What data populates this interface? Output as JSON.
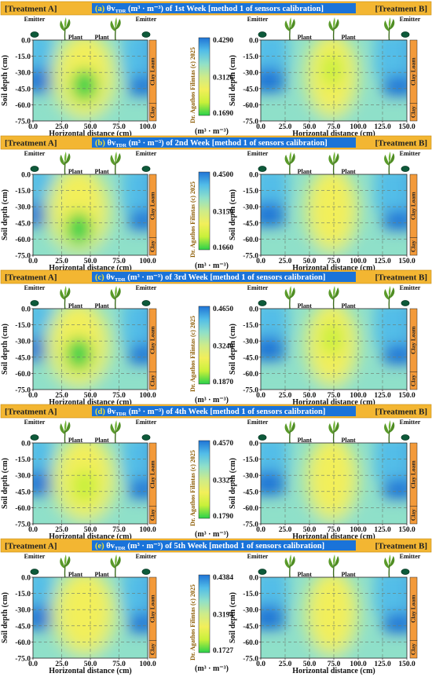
{
  "colors": {
    "banner_bg": "#f3b632",
    "banner_title_bg": "#1a73d9",
    "scale": [
      "#29d14a",
      "#c8f03a",
      "#f2ef5a",
      "#cdeb8a",
      "#8fe0c9",
      "#52bde8",
      "#1f74d6"
    ],
    "layer_label_bg": "#f39a3a"
  },
  "labels": {
    "treatment_a": "[Treatment A]",
    "treatment_b": "[Treatment B]",
    "emitter": "Emitter",
    "plant": "Plant",
    "y_axis": "Soil depth (cm)",
    "x_axis": "Horizontal distance (cm)",
    "colorbar_unit": "(m³ · m⁻³)",
    "credit": "Dr. Agathos Filintas (c) 2025",
    "layer_top": "Clay Loam",
    "layer_bottom": "Clay",
    "unit_prefix": "(m³ · m⁻³) of",
    "method": "[method 1 of sensors calibration]",
    "tdr_sub": "TDR"
  },
  "axes": {
    "y_ticks": [
      "0.0",
      "-15.0",
      "-30.0",
      "-45.0",
      "-60.0",
      "-75.0"
    ],
    "x_ticks_a": [
      "0.0",
      "25.0",
      "50.0",
      "75.0",
      "100.0"
    ],
    "x_ticks_b": [
      "0.0",
      "25.0",
      "50.0",
      "75.0",
      "100.0",
      "125.0",
      "150.0"
    ]
  },
  "chart_data": [
    {
      "type": "heatmap",
      "panel": "(a)",
      "week": "1st Week",
      "colorbar": {
        "max": "0.4290",
        "mid": "0.3126",
        "min": "0.1690"
      },
      "treatment_a": {
        "xlim": [
          0,
          100
        ],
        "ylim": [
          -75,
          0
        ],
        "wet_zone": {
          "center_x": 45,
          "center_y": -42,
          "value": 0.18
        }
      },
      "treatment_b": {
        "xlim": [
          0,
          150
        ],
        "ylim": [
          -75,
          0
        ],
        "wet_zone": {
          "center_x": 73,
          "center_y": -28,
          "value": 0.22
        }
      }
    },
    {
      "type": "heatmap",
      "panel": "(b)",
      "week": "2nd Week",
      "colorbar": {
        "max": "0.4500",
        "mid": "0.3159",
        "min": "0.1660"
      },
      "treatment_a": {
        "xlim": [
          0,
          100
        ],
        "ylim": [
          -75,
          0
        ],
        "wet_zone": {
          "center_x": 40,
          "center_y": -50,
          "value": 0.18
        }
      },
      "treatment_b": {
        "xlim": [
          0,
          150
        ],
        "ylim": [
          -75,
          0
        ],
        "wet_zone": {
          "center_x": 73,
          "center_y": -28,
          "value": 0.24
        }
      }
    },
    {
      "type": "heatmap",
      "panel": "(c)",
      "week": "3rd Week",
      "colorbar": {
        "max": "0.4650",
        "mid": "0.3240",
        "min": "0.1870"
      },
      "treatment_a": {
        "xlim": [
          0,
          100
        ],
        "ylim": [
          -75,
          0
        ],
        "wet_zone": {
          "center_x": 40,
          "center_y": -42,
          "value": 0.2
        }
      },
      "treatment_b": {
        "xlim": [
          0,
          150
        ],
        "ylim": [
          -75,
          0
        ],
        "wet_zone": {
          "center_x": 73,
          "center_y": -28,
          "value": 0.25
        }
      }
    },
    {
      "type": "heatmap",
      "panel": "(d)",
      "week": "4th Week",
      "colorbar": {
        "max": "0.4570",
        "mid": "0.3327",
        "min": "0.1790"
      },
      "treatment_a": {
        "xlim": [
          0,
          100
        ],
        "ylim": [
          -75,
          0
        ],
        "wet_zone": {
          "center_x": 45,
          "center_y": -40,
          "value": 0.24
        }
      },
      "treatment_b": {
        "xlim": [
          0,
          150
        ],
        "ylim": [
          -75,
          0
        ],
        "wet_zone": {
          "center_x": 73,
          "center_y": -25,
          "value": 0.25
        }
      }
    },
    {
      "type": "heatmap",
      "panel": "(e)",
      "week": "5th Week",
      "colorbar": {
        "max": "0.4384",
        "mid": "0.3194",
        "min": "0.1727"
      },
      "treatment_a": {
        "xlim": [
          0,
          100
        ],
        "ylim": [
          -75,
          0
        ],
        "wet_zone": {
          "center_x": 45,
          "center_y": -35,
          "value": 0.26
        }
      },
      "treatment_b": {
        "xlim": [
          0,
          150
        ],
        "ylim": [
          -75,
          0
        ],
        "wet_zone": {
          "center_x": 73,
          "center_y": -25,
          "value": 0.26
        }
      }
    }
  ]
}
